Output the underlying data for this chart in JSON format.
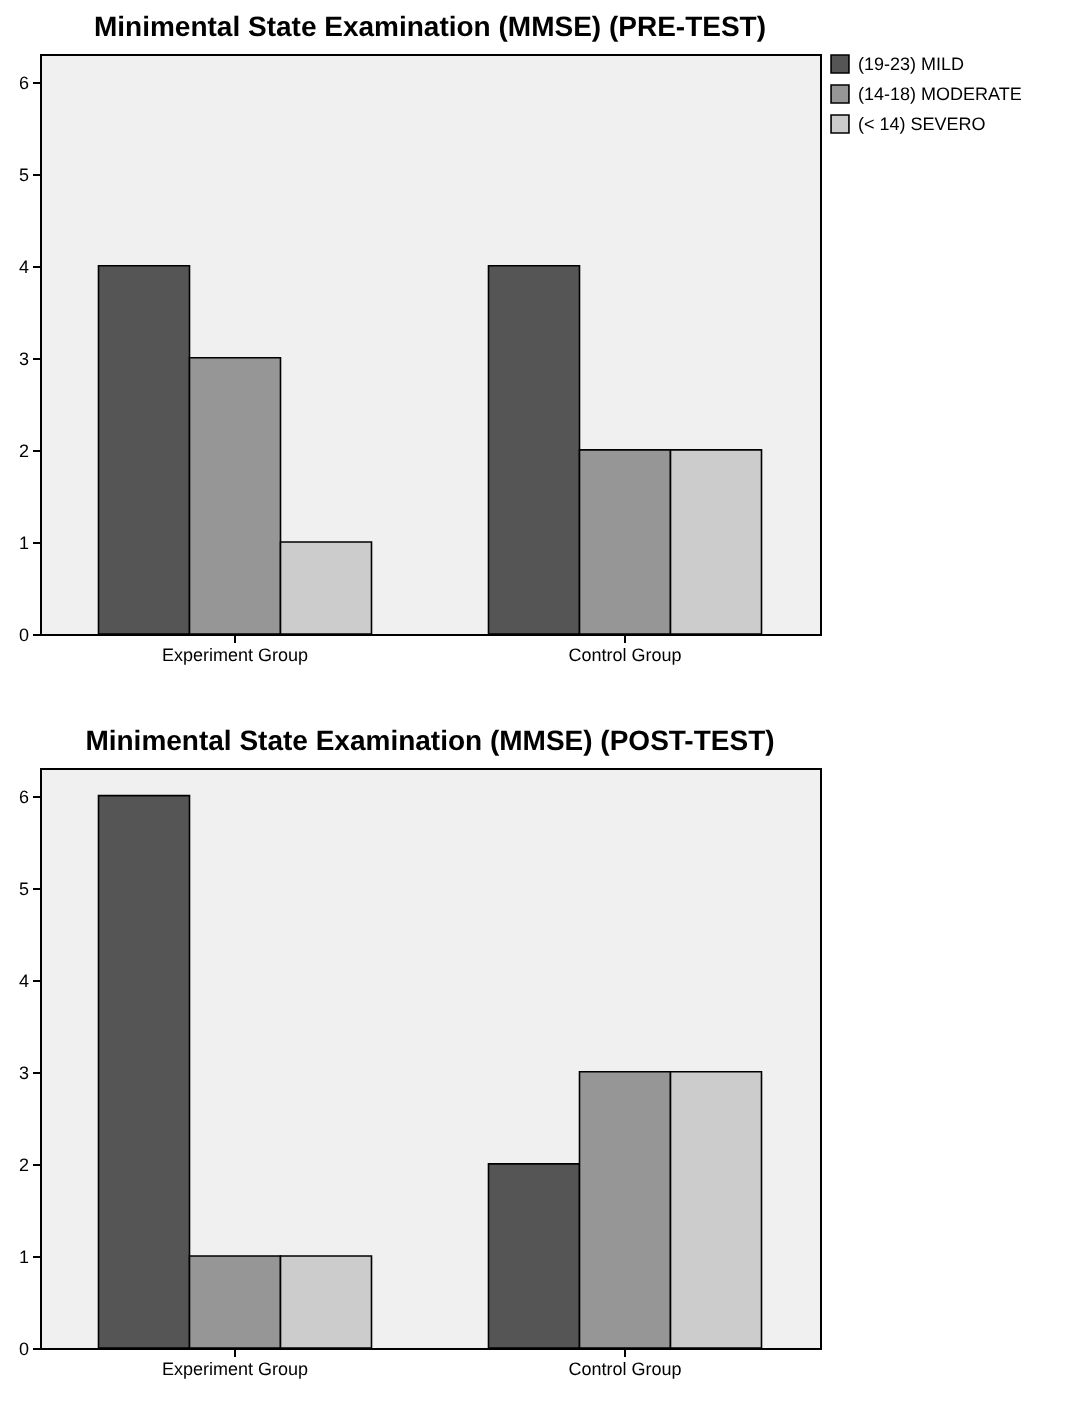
{
  "chart_data": [
    {
      "type": "bar",
      "title": "Minimental State Examination (MMSE) (PRE-TEST)",
      "categories": [
        "Experiment Group",
        "Control Group"
      ],
      "series": [
        {
          "name": "(19-23) MILD",
          "color": "#555555",
          "values": [
            4,
            4
          ]
        },
        {
          "name": "(14-18) MODERATE",
          "color": "#969696",
          "values": [
            3,
            2
          ]
        },
        {
          "name": "(< 14) SEVERO",
          "color": "#cccccc",
          "values": [
            1,
            2
          ]
        }
      ],
      "ylim": [
        0,
        6.3
      ],
      "yticks": [
        0,
        1,
        2,
        3,
        4,
        5,
        6
      ],
      "grid": false,
      "legend": "top right"
    },
    {
      "type": "bar",
      "title": "Minimental State Examination (MMSE) (POST-TEST)",
      "categories": [
        "Experiment Group",
        "Control Group"
      ],
      "series": [
        {
          "name": "(19-23) MILD",
          "color": "#555555",
          "values": [
            6,
            2
          ]
        },
        {
          "name": "(14-18) MODERATE",
          "color": "#969696",
          "values": [
            1,
            3
          ]
        },
        {
          "name": "(< 14) SEVERO",
          "color": "#cccccc",
          "values": [
            1,
            3
          ]
        }
      ],
      "ylim": [
        0,
        6.3
      ],
      "yticks": [
        0,
        1,
        2,
        3,
        4,
        5,
        6
      ],
      "grid": false,
      "legend": "top right"
    }
  ]
}
